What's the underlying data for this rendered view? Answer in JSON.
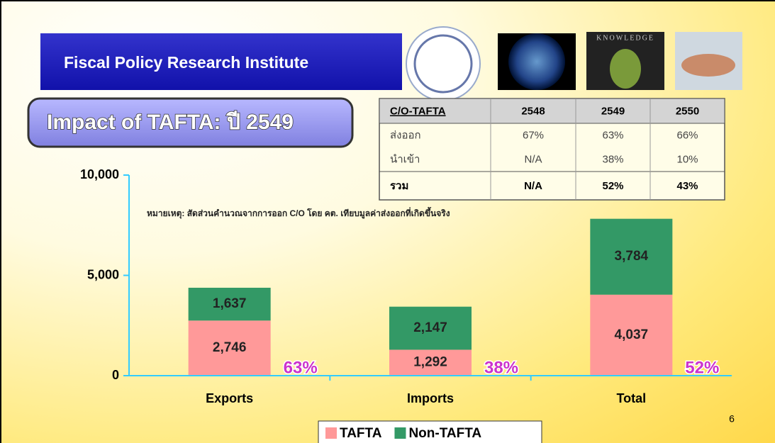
{
  "header": {
    "title": "Fiscal Policy Research Institute",
    "image_caption": "KNOWLEDGE"
  },
  "subtitle": "Impact of TAFTA: ปี 2549",
  "table": {
    "header": [
      "C/O-TAFTA",
      "2548",
      "2549",
      "2550"
    ],
    "rows": [
      [
        "ส่งออก",
        "67%",
        "63%",
        "66%"
      ],
      [
        "นำเข้า",
        "N/A",
        "38%",
        "10%"
      ],
      [
        "รวม",
        "N/A",
        "52%",
        "43%"
      ]
    ]
  },
  "page_number": "6",
  "chart_data": {
    "type": "stacked_bar",
    "note": "หมายเหตุ: สัดส่วนคำนวณจากการออก C/O โดย คต. เทียบมูลค่าส่งออกที่เกิดขึ้นจริง",
    "categories": [
      "Exports",
      "Imports",
      "Total"
    ],
    "series": [
      {
        "name": "TAFTA",
        "color": "#ff9999",
        "values": [
          2746,
          1292,
          4037
        ],
        "value_labels": [
          "2,746",
          "1,292",
          "4,037"
        ]
      },
      {
        "name": "Non-TAFTA",
        "color": "#339966",
        "values": [
          1637,
          2147,
          3784
        ],
        "value_labels": [
          "1,637",
          "2,147",
          "3,784"
        ]
      }
    ],
    "annotations": [
      "63%",
      "38%",
      "52%"
    ],
    "ylim": [
      0,
      10000
    ],
    "yticks": [
      0,
      {
        "value": 5000,
        "label": "5,000"
      },
      {
        "value": 10000,
        "label": "10,000"
      }
    ],
    "axis_color": "#33ccff"
  }
}
